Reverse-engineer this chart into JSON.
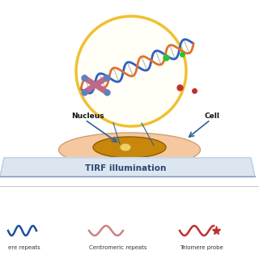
{
  "bg_color": "#ffffff",
  "cell_color": "#f5c8a0",
  "nucleus_color": "#c8860a",
  "nucleolus_color": "#f0d060",
  "glass_top_color": "#b8cce4",
  "glass_body_color": "#dce6f0",
  "glass_bottom_color": "#aabbd0",
  "tirf_text": "TIRF illumination",
  "tirf_text_color": "#2c4770",
  "nucleus_label": "Nucleus",
  "cell_label": "Cell",
  "circle_color": "#f0c030",
  "dna_blue": "#3060c0",
  "dna_red": "#c03030",
  "dna_orange": "#e07030",
  "green_dot": "#30c030",
  "red_dot": "#c03030",
  "legend_blue_color": "#2050a0",
  "legend_pink_color": "#d08080",
  "legend_red_color": "#c03030",
  "label1": "ere repeats",
  "label2": "Centromeric repeats",
  "label3": "Telomere probe",
  "label_color": "#333333"
}
